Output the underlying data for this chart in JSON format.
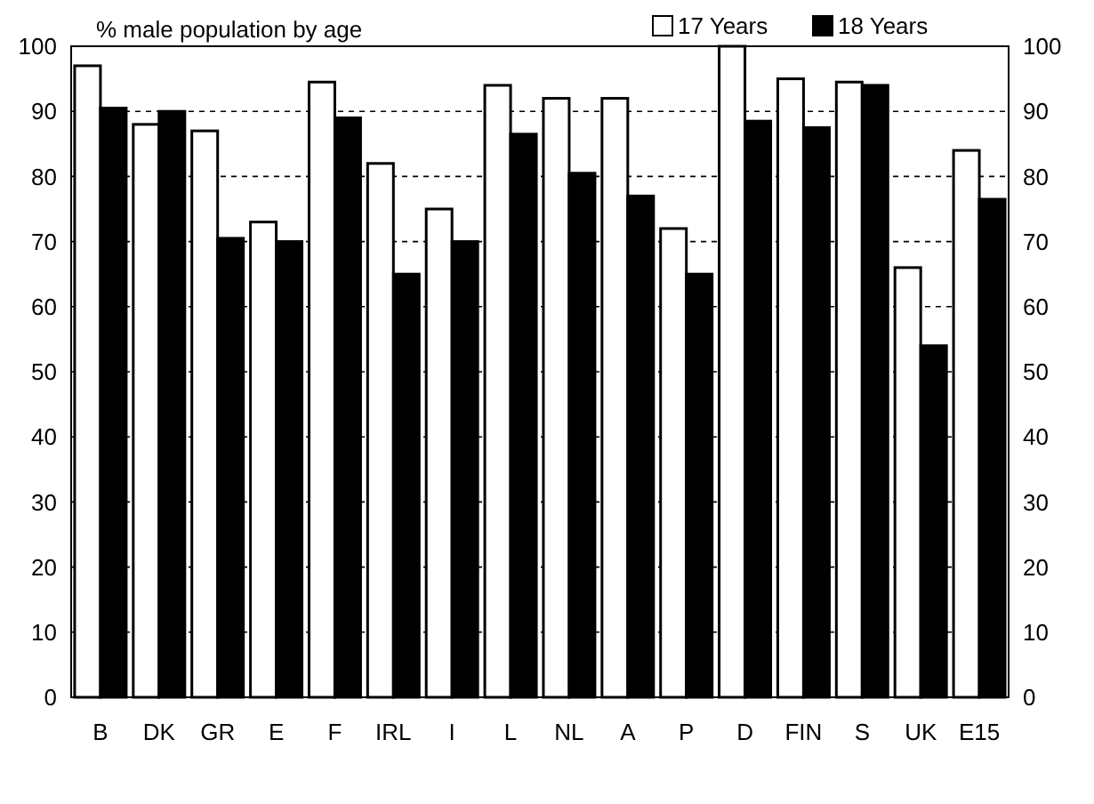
{
  "chart_data": {
    "type": "bar",
    "title": "% male population by age",
    "categories": [
      "B",
      "DK",
      "GR",
      "E",
      "F",
      "IRL",
      "I",
      "L",
      "NL",
      "A",
      "P",
      "D",
      "FIN",
      "S",
      "UK",
      "E15"
    ],
    "series": [
      {
        "name": "17 Years",
        "color": "#ffffff",
        "values": [
          97,
          88,
          87,
          73,
          94.5,
          82,
          75,
          94,
          92,
          92,
          72,
          100,
          95,
          94.5,
          66,
          84
        ]
      },
      {
        "name": "18 Years",
        "color": "#000000",
        "values": [
          90.5,
          90,
          70.5,
          70,
          89,
          65,
          70,
          86.5,
          80.5,
          77,
          65,
          88.5,
          87.5,
          94,
          54,
          76.5
        ]
      }
    ],
    "ylim": [
      0,
      100
    ],
    "yticks": [
      0,
      10,
      20,
      30,
      40,
      50,
      60,
      70,
      80,
      90,
      100
    ],
    "y2lim": [
      0,
      100
    ],
    "y2ticks": [
      0,
      10,
      20,
      30,
      40,
      50,
      60,
      70,
      80,
      90,
      100
    ],
    "grid": "y",
    "legend": "top right"
  }
}
